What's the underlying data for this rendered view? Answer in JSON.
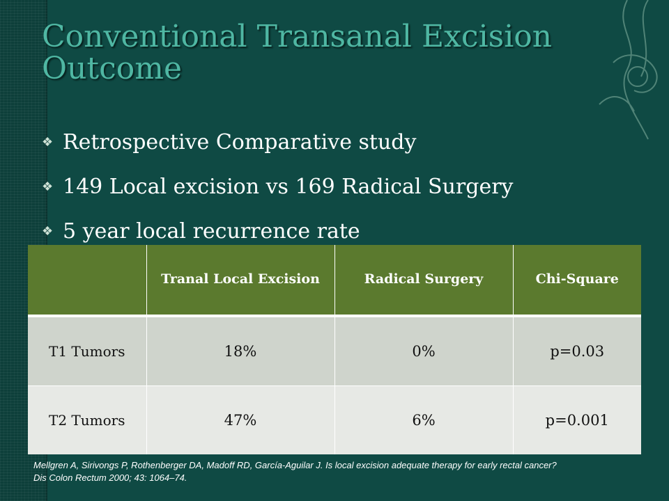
{
  "slide": {
    "title": "Conventional Transanal Excision Outcome",
    "bullets": [
      "Retrospective Comparative study",
      "149 Local excision vs 169 Radical Surgery",
      "5 year local recurrence rate"
    ],
    "table": {
      "headers": [
        "",
        "Tranal Local Excision",
        "Radical Surgery",
        "Chi-Square"
      ],
      "rows": [
        [
          "T1 Tumors",
          "18%",
          "0%",
          "p=0.03"
        ],
        [
          "T2 Tumors",
          "47%",
          "6%",
          "p=0.001"
        ]
      ]
    },
    "citation_line1": "Mellgren A, Sirivongs P, Rothenberger DA, Madoff RD, García-Aguilar J.  Is local excision adequate therapy for early rectal cancer?",
    "citation_line2": "Dis Colon Rectum 2000; 43: 1064–74."
  },
  "colors": {
    "background": "#0f4a44",
    "title": "#4fb7a3",
    "table_header": "#5b7a2e",
    "row_1": "#cfd4cc",
    "row_2": "#e7e9e5"
  },
  "icons": {
    "bullet": "diamond-bullet-icon",
    "ornament": "floral-ornament-icon"
  }
}
